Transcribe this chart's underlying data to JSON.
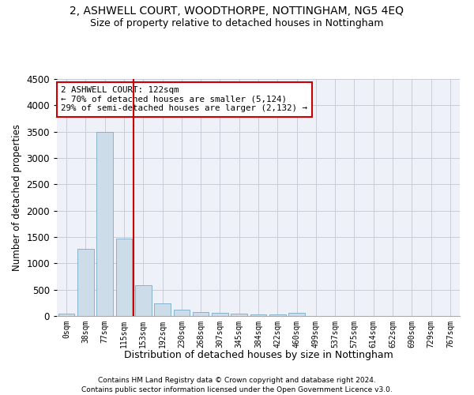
{
  "title": "2, ASHWELL COURT, WOODTHORPE, NOTTINGHAM, NG5 4EQ",
  "subtitle": "Size of property relative to detached houses in Nottingham",
  "xlabel": "Distribution of detached houses by size in Nottingham",
  "ylabel": "Number of detached properties",
  "categories": [
    "0sqm",
    "38sqm",
    "77sqm",
    "115sqm",
    "153sqm",
    "192sqm",
    "230sqm",
    "268sqm",
    "307sqm",
    "345sqm",
    "384sqm",
    "422sqm",
    "460sqm",
    "499sqm",
    "537sqm",
    "575sqm",
    "614sqm",
    "652sqm",
    "690sqm",
    "729sqm",
    "767sqm"
  ],
  "values": [
    40,
    1280,
    3500,
    1470,
    580,
    240,
    115,
    80,
    55,
    40,
    30,
    25,
    60,
    0,
    0,
    0,
    0,
    0,
    0,
    0,
    0
  ],
  "bar_color": "#ccdce8",
  "bar_edge_color": "#7aaac8",
  "vline_color": "#cc0000",
  "annotation_text": "2 ASHWELL COURT: 122sqm\n← 70% of detached houses are smaller (5,124)\n29% of semi-detached houses are larger (2,132) →",
  "annotation_box_color": "#ffffff",
  "annotation_box_edge": "#cc0000",
  "ylim": [
    0,
    4500
  ],
  "yticks": [
    0,
    500,
    1000,
    1500,
    2000,
    2500,
    3000,
    3500,
    4000,
    4500
  ],
  "footer1": "Contains HM Land Registry data © Crown copyright and database right 2024.",
  "footer2": "Contains public sector information licensed under the Open Government Licence v3.0.",
  "title_fontsize": 10,
  "subtitle_fontsize": 9,
  "bg_color": "#eef2f8",
  "grid_color": "#c8ccd8"
}
